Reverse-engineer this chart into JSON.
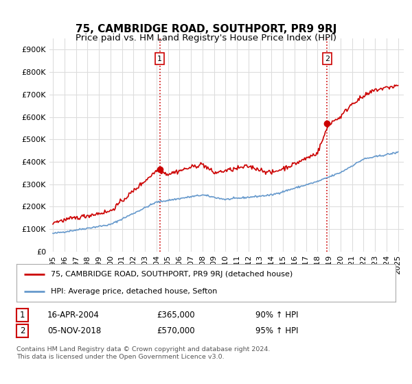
{
  "title": "75, CAMBRIDGE ROAD, SOUTHPORT, PR9 9RJ",
  "subtitle": "Price paid vs. HM Land Registry's House Price Index (HPI)",
  "ylabel_vals": [
    0,
    100000,
    200000,
    300000,
    400000,
    500000,
    600000,
    700000,
    800000,
    900000
  ],
  "ylabel_labels": [
    "£0",
    "£100K",
    "£200K",
    "£300K",
    "£400K",
    "£500K",
    "£600K",
    "£700K",
    "£800K",
    "£900K"
  ],
  "ylim": [
    0,
    950000
  ],
  "xlim_start": 1994.7,
  "xlim_end": 2025.5,
  "xtick_years": [
    1995,
    1996,
    1997,
    1998,
    1999,
    2000,
    2001,
    2002,
    2003,
    2004,
    2005,
    2006,
    2007,
    2008,
    2009,
    2010,
    2011,
    2012,
    2013,
    2014,
    2015,
    2016,
    2017,
    2018,
    2019,
    2020,
    2021,
    2022,
    2023,
    2024,
    2025
  ],
  "red_line_color": "#cc0000",
  "blue_line_color": "#6699cc",
  "marker_color": "#cc0000",
  "vline_color": "#cc0000",
  "sale1_x": 2004.29,
  "sale1_y": 365000,
  "sale1_label": "1",
  "sale2_x": 2018.84,
  "sale2_y": 570000,
  "sale2_label": "2",
  "legend_line1": "75, CAMBRIDGE ROAD, SOUTHPORT, PR9 9RJ (detached house)",
  "legend_line2": "HPI: Average price, detached house, Sefton",
  "table_row1": [
    "1",
    "16-APR-2004",
    "£365,000",
    "90% ↑ HPI"
  ],
  "table_row2": [
    "2",
    "05-NOV-2018",
    "£570,000",
    "95% ↑ HPI"
  ],
  "footnote1": "Contains HM Land Registry data © Crown copyright and database right 2024.",
  "footnote2": "This data is licensed under the Open Government Licence v3.0.",
  "bg_color": "#ffffff",
  "grid_color": "#dddddd",
  "title_fontsize": 11,
  "subtitle_fontsize": 9.5,
  "axis_fontsize": 8.0
}
